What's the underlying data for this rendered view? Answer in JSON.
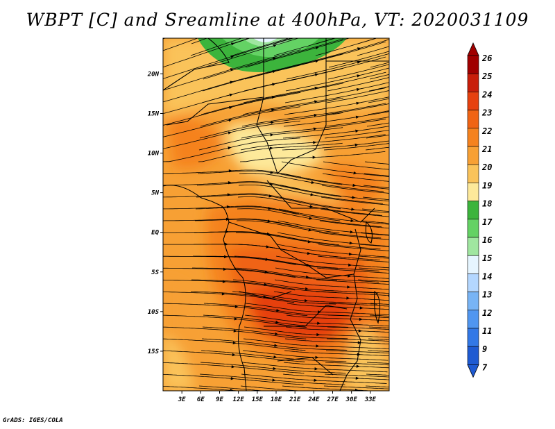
{
  "title": "WBPT [C] and Sreamline at 400hPa, VT: 2020031109",
  "credit": "GrADS: IGES/COLA",
  "map": {
    "lat_labels": [
      "20N",
      "15N",
      "10N",
      "5N",
      "EQ",
      "5S",
      "10S",
      "15S"
    ],
    "lon_labels": [
      "3E",
      "6E",
      "9E",
      "12E",
      "15E",
      "18E",
      "21E",
      "24E",
      "27E",
      "30E",
      "33E"
    ],
    "lon_range": [
      0,
      36
    ],
    "lat_range": [
      -20,
      24.5
    ],
    "variable": "Wet-bulb potential temperature (C)"
  },
  "colorbar": {
    "labels": [
      "26",
      "25",
      "24",
      "23",
      "22",
      "21",
      "20",
      "19",
      "18",
      "17",
      "16",
      "15",
      "14",
      "13",
      "12",
      "11",
      "9",
      "7"
    ],
    "colors": [
      "#a00000",
      "#c81e0a",
      "#e6410f",
      "#f06414",
      "#f5821e",
      "#f7a034",
      "#fac35a",
      "#fde99a",
      "#3cb43c",
      "#64d264",
      "#a0e6a0",
      "#e6f5ff",
      "#b4d7ff",
      "#78b4f5",
      "#5096f0",
      "#3278e6",
      "#1e5ad2"
    ],
    "over_color": "#a00000",
    "under_color": "#1e5ad2"
  }
}
